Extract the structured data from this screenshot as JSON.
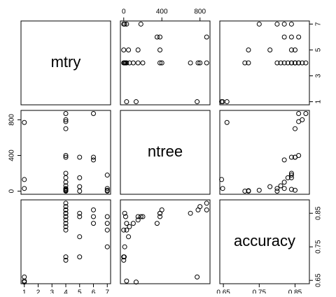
{
  "chart_data": {
    "type": "pairs",
    "color": "#000000",
    "variables": [
      {
        "name": "mtry",
        "values": [
          1,
          1,
          1,
          4,
          4,
          4,
          4,
          4,
          4,
          4,
          4,
          4,
          4,
          4,
          4,
          4,
          4,
          4,
          5,
          5,
          5,
          5,
          6,
          6,
          6,
          7,
          7,
          7,
          7
        ],
        "lim": [
          0.76,
          7.24
        ],
        "xticks": [
          1,
          2,
          3,
          4,
          5,
          6,
          7
        ],
        "yticks": [
          1,
          3,
          5,
          7
        ]
      },
      {
        "name": "ntree",
        "values": [
          770,
          130,
          30,
          870,
          800,
          780,
          700,
          400,
          380,
          200,
          150,
          100,
          60,
          30,
          10,
          5,
          0,
          20,
          380,
          150,
          50,
          0,
          870,
          380,
          350,
          180,
          30,
          0,
          10
        ],
        "lim": [
          -35,
          905
        ],
        "xticks": [
          0,
          400,
          800
        ],
        "yticks": [
          0,
          400,
          800
        ]
      },
      {
        "name": "accuracy",
        "values": [
          0.66,
          0.645,
          0.648,
          0.88,
          0.87,
          0.86,
          0.85,
          0.86,
          0.85,
          0.84,
          0.83,
          0.82,
          0.81,
          0.8,
          0.85,
          0.72,
          0.71,
          0.84,
          0.85,
          0.84,
          0.78,
          0.72,
          0.86,
          0.84,
          0.82,
          0.84,
          0.82,
          0.8,
          0.75
        ],
        "lim": [
          0.64,
          0.89
        ],
        "xticks": [
          0.65,
          0.75,
          0.85
        ],
        "yticks": [
          0.65,
          0.75,
          0.85
        ]
      }
    ]
  }
}
